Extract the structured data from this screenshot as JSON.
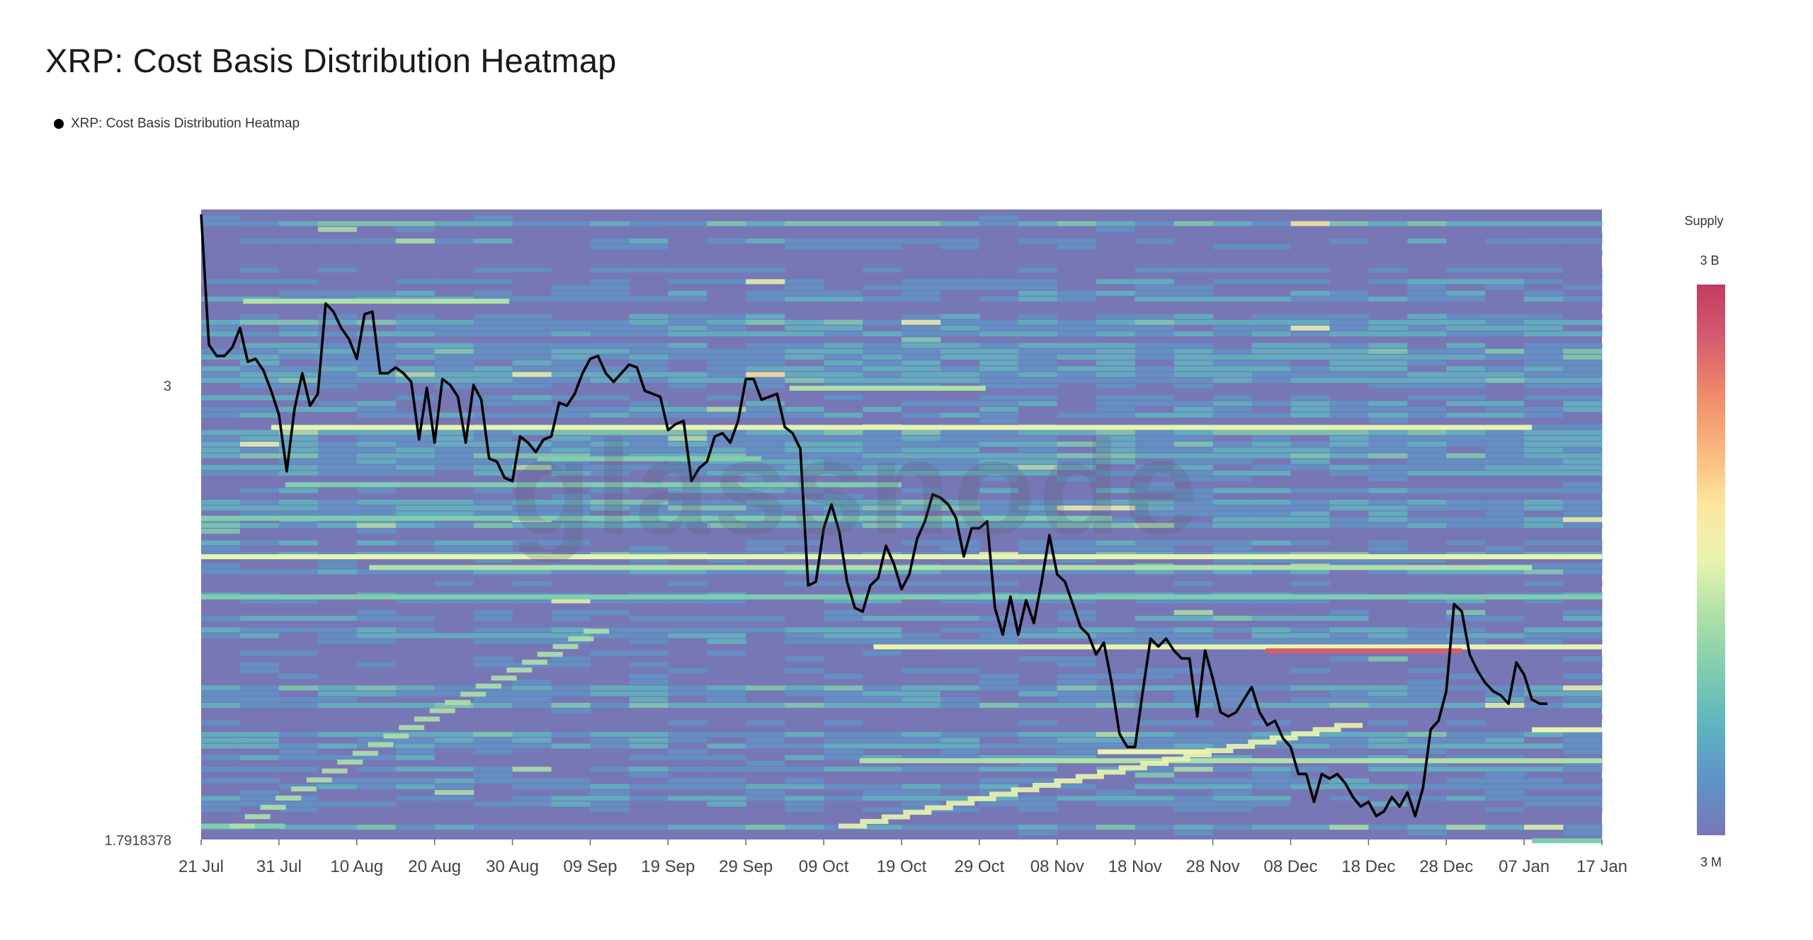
{
  "title": "XRP: Cost Basis Distribution Heatmap",
  "legend": {
    "series_label": "XRP: Cost Basis Distribution Heatmap"
  },
  "watermark": "glassnode",
  "colorbar": {
    "title": "Supply",
    "max_label": "3 B",
    "min_label": "3 M"
  },
  "colors": {
    "line": "#000000",
    "background_cell": "#7777b5",
    "scale": [
      "#7777b5",
      "#5f93c6",
      "#5fb4c0",
      "#7fcdae",
      "#aee0a8",
      "#e8f4ae",
      "#fde6a0",
      "#f9b77f",
      "#ef8a6a",
      "#d55d6e",
      "#c23b62"
    ]
  },
  "chart_data": {
    "type": "heatmap",
    "title": "XRP: Cost Basis Distribution Heatmap",
    "x_tick_labels": [
      "21 Jul",
      "31 Jul",
      "10 Aug",
      "20 Aug",
      "30 Aug",
      "09 Sep",
      "19 Sep",
      "29 Sep",
      "09 Oct",
      "19 Oct",
      "29 Oct",
      "08 Nov",
      "18 Nov",
      "28 Nov",
      "08 Dec",
      "18 Dec",
      "28 Dec",
      "07 Jan",
      "17 Jan"
    ],
    "y_tick_labels": [
      "3",
      "1.7918378"
    ],
    "y_scale": "log",
    "ylim": [
      1.7918378,
      3.66
    ],
    "x_range_days": [
      0,
      180
    ],
    "price_series": [
      [
        0,
        3.64
      ],
      [
        1,
        3.14
      ],
      [
        2,
        3.1
      ],
      [
        3,
        3.1
      ],
      [
        4,
        3.13
      ],
      [
        5,
        3.2
      ],
      [
        6,
        3.08
      ],
      [
        7,
        3.09
      ],
      [
        8,
        3.05
      ],
      [
        9,
        2.98
      ],
      [
        10,
        2.9
      ],
      [
        11,
        2.72
      ],
      [
        12,
        2.92
      ],
      [
        13,
        3.04
      ],
      [
        14,
        2.93
      ],
      [
        15,
        2.97
      ],
      [
        16,
        3.29
      ],
      [
        17,
        3.26
      ],
      [
        18,
        3.2
      ],
      [
        19,
        3.16
      ],
      [
        20,
        3.09
      ],
      [
        21,
        3.25
      ],
      [
        22,
        3.26
      ],
      [
        23,
        3.04
      ],
      [
        24,
        3.04
      ],
      [
        25,
        3.06
      ],
      [
        26,
        3.04
      ],
      [
        27,
        3.01
      ],
      [
        28,
        2.82
      ],
      [
        29,
        2.99
      ],
      [
        30,
        2.81
      ],
      [
        31,
        3.02
      ],
      [
        32,
        3.0
      ],
      [
        33,
        2.96
      ],
      [
        34,
        2.81
      ],
      [
        35,
        3.0
      ],
      [
        36,
        2.95
      ],
      [
        37,
        2.76
      ],
      [
        38,
        2.75
      ],
      [
        39,
        2.7
      ],
      [
        40,
        2.69
      ],
      [
        41,
        2.83
      ],
      [
        42,
        2.81
      ],
      [
        43,
        2.78
      ],
      [
        44,
        2.82
      ],
      [
        45,
        2.83
      ],
      [
        46,
        2.94
      ],
      [
        47,
        2.93
      ],
      [
        48,
        2.97
      ],
      [
        49,
        3.04
      ],
      [
        50,
        3.09
      ],
      [
        51,
        3.1
      ],
      [
        52,
        3.04
      ],
      [
        53,
        3.01
      ],
      [
        54,
        3.04
      ],
      [
        55,
        3.07
      ],
      [
        56,
        3.06
      ],
      [
        57,
        2.98
      ],
      [
        58,
        2.97
      ],
      [
        59,
        2.96
      ],
      [
        60,
        2.85
      ],
      [
        61,
        2.87
      ],
      [
        62,
        2.88
      ],
      [
        63,
        2.69
      ],
      [
        64,
        2.73
      ],
      [
        65,
        2.75
      ],
      [
        66,
        2.83
      ],
      [
        67,
        2.84
      ],
      [
        68,
        2.81
      ],
      [
        69,
        2.88
      ],
      [
        70,
        3.02
      ],
      [
        71,
        3.02
      ],
      [
        72,
        2.95
      ],
      [
        73,
        2.96
      ],
      [
        74,
        2.97
      ],
      [
        75,
        2.86
      ],
      [
        76,
        2.84
      ],
      [
        77,
        2.79
      ],
      [
        78,
        2.39
      ],
      [
        79,
        2.4
      ],
      [
        80,
        2.55
      ],
      [
        81,
        2.62
      ],
      [
        82,
        2.54
      ],
      [
        83,
        2.4
      ],
      [
        84,
        2.33
      ],
      [
        85,
        2.32
      ],
      [
        86,
        2.39
      ],
      [
        87,
        2.41
      ],
      [
        88,
        2.5
      ],
      [
        89,
        2.45
      ],
      [
        90,
        2.38
      ],
      [
        91,
        2.42
      ],
      [
        92,
        2.52
      ],
      [
        93,
        2.57
      ],
      [
        94,
        2.65
      ],
      [
        95,
        2.64
      ],
      [
        96,
        2.62
      ],
      [
        97,
        2.58
      ],
      [
        98,
        2.47
      ],
      [
        99,
        2.55
      ],
      [
        100,
        2.55
      ],
      [
        101,
        2.57
      ],
      [
        102,
        2.33
      ],
      [
        103,
        2.26
      ],
      [
        104,
        2.36
      ],
      [
        105,
        2.26
      ],
      [
        106,
        2.35
      ],
      [
        107,
        2.29
      ],
      [
        108,
        2.4
      ],
      [
        109,
        2.53
      ],
      [
        110,
        2.42
      ],
      [
        111,
        2.4
      ],
      [
        112,
        2.34
      ],
      [
        113,
        2.28
      ],
      [
        114,
        2.26
      ],
      [
        115,
        2.21
      ],
      [
        116,
        2.24
      ],
      [
        117,
        2.14
      ],
      [
        118,
        2.02
      ],
      [
        119,
        1.99
      ],
      [
        120,
        1.99
      ],
      [
        121,
        2.12
      ],
      [
        122,
        2.25
      ],
      [
        123,
        2.23
      ],
      [
        124,
        2.25
      ],
      [
        125,
        2.22
      ],
      [
        126,
        2.2
      ],
      [
        127,
        2.2
      ],
      [
        128,
        2.06
      ],
      [
        129,
        2.22
      ],
      [
        130,
        2.15
      ],
      [
        131,
        2.07
      ],
      [
        132,
        2.06
      ],
      [
        133,
        2.07
      ],
      [
        134,
        2.1
      ],
      [
        135,
        2.13
      ],
      [
        136,
        2.07
      ],
      [
        137,
        2.04
      ],
      [
        138,
        2.05
      ],
      [
        139,
        2.01
      ],
      [
        140,
        1.99
      ],
      [
        141,
        1.93
      ],
      [
        142,
        1.93
      ],
      [
        143,
        1.87
      ],
      [
        144,
        1.93
      ],
      [
        145,
        1.92
      ],
      [
        146,
        1.93
      ],
      [
        147,
        1.91
      ],
      [
        148,
        1.88
      ],
      [
        149,
        1.86
      ],
      [
        150,
        1.87
      ],
      [
        151,
        1.84
      ],
      [
        152,
        1.85
      ],
      [
        153,
        1.88
      ],
      [
        154,
        1.86
      ],
      [
        155,
        1.89
      ],
      [
        156,
        1.84
      ],
      [
        157,
        1.9
      ],
      [
        158,
        2.03
      ],
      [
        159,
        2.05
      ],
      [
        160,
        2.12
      ],
      [
        161,
        2.34
      ],
      [
        162,
        2.32
      ],
      [
        163,
        2.21
      ],
      [
        164,
        2.17
      ],
      [
        165,
        2.14
      ],
      [
        166,
        2.12
      ],
      [
        167,
        2.11
      ],
      [
        168,
        2.09
      ],
      [
        169,
        2.19
      ],
      [
        170,
        2.16
      ],
      [
        171,
        2.1
      ],
      [
        172,
        2.09
      ],
      [
        173,
        2.09
      ]
    ]
  }
}
